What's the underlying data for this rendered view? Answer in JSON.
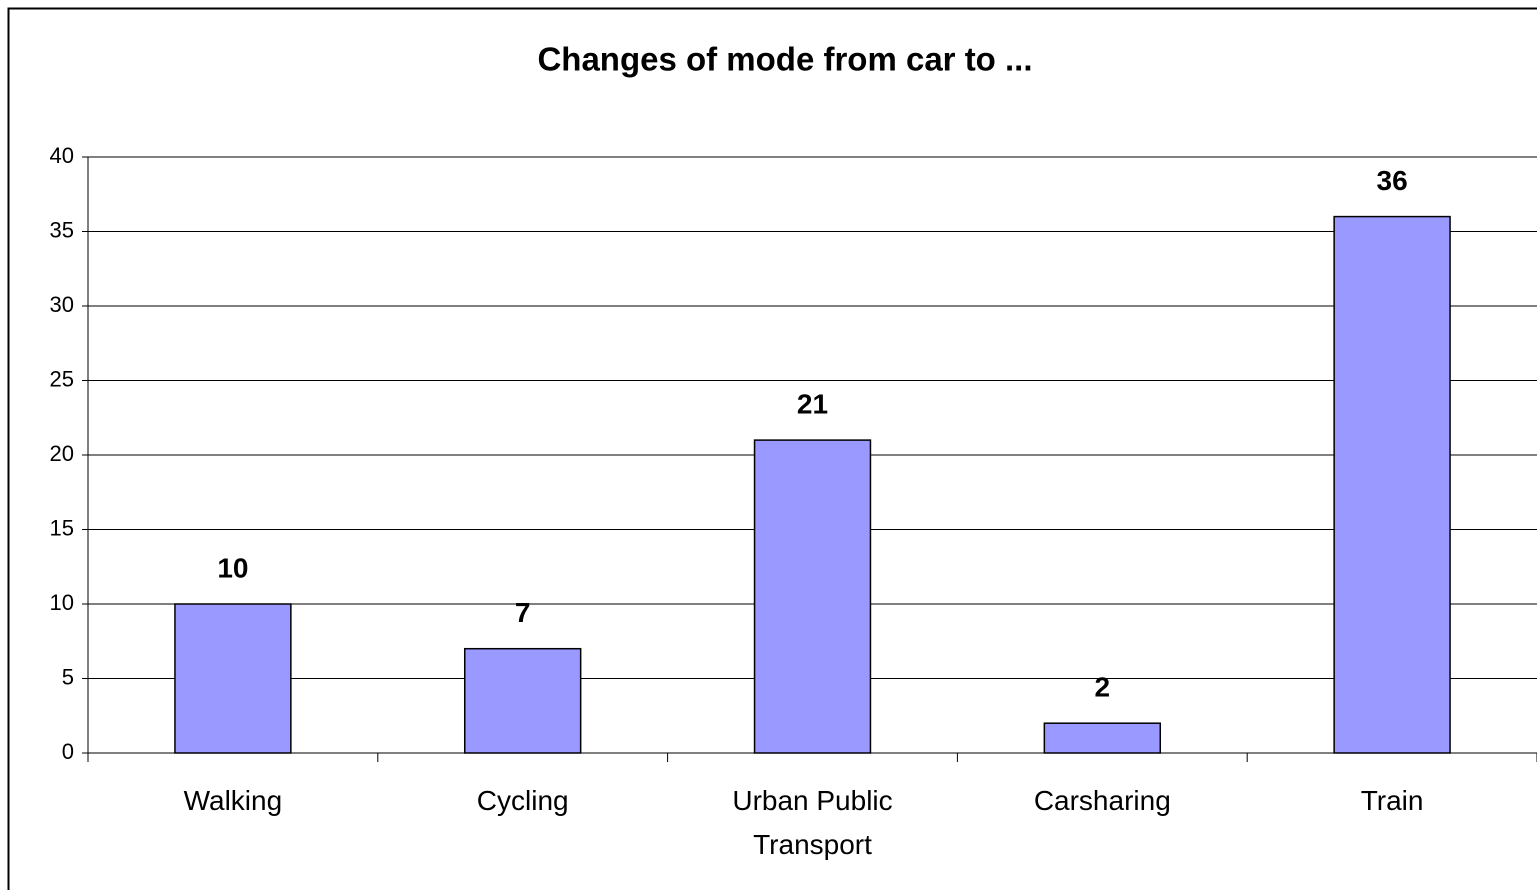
{
  "chart_data": {
    "type": "bar",
    "title": "Changes of mode from car to ...",
    "categories": [
      "Walking",
      "Cycling",
      "Urban Public Transport",
      "Carsharing",
      "Train"
    ],
    "values": [
      10,
      7,
      21,
      2,
      36
    ],
    "color": "#9999ff",
    "ylim": [
      0,
      40
    ],
    "yticks": [
      0,
      5,
      10,
      15,
      20,
      25,
      30,
      35,
      40
    ],
    "grid": true
  }
}
